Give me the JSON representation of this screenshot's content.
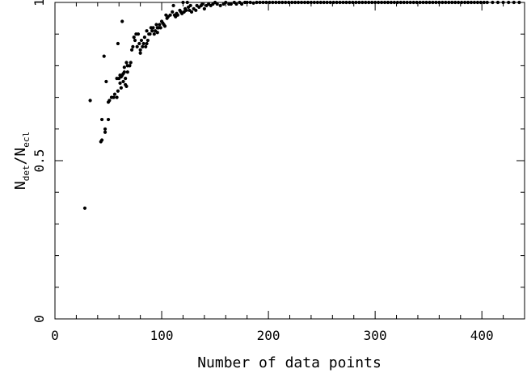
{
  "chart_data": {
    "type": "scatter",
    "xlabel": "Number of data points",
    "ylabel": {
      "n1": "N",
      "sub1": "det",
      "sep": "/",
      "n2": "N",
      "sub2": "ecl"
    },
    "xlim": [
      0,
      440
    ],
    "ylim": [
      0,
      1.0
    ],
    "x_ticks": [
      0,
      100,
      200,
      300,
      400
    ],
    "y_ticks": [
      0,
      0.5,
      1
    ],
    "x_tick_labels": [
      "0",
      "100",
      "200",
      "300",
      "400"
    ],
    "y_tick_labels": [
      "0",
      "0.5",
      "1"
    ],
    "x_minor_step": 20,
    "y_minor_step": 0.1,
    "grid": false,
    "color": "#000000",
    "points": [
      [
        28,
        0.35
      ],
      [
        33,
        0.69
      ],
      [
        43,
        0.56
      ],
      [
        44,
        0.565
      ],
      [
        44,
        0.63
      ],
      [
        46,
        0.83
      ],
      [
        47,
        0.59
      ],
      [
        47,
        0.6
      ],
      [
        48,
        0.75
      ],
      [
        50,
        0.63
      ],
      [
        50,
        0.685
      ],
      [
        51,
        0.69
      ],
      [
        53,
        0.7
      ],
      [
        55,
        0.7
      ],
      [
        56,
        0.71
      ],
      [
        58,
        0.7
      ],
      [
        58,
        0.76
      ],
      [
        59,
        0.72
      ],
      [
        59,
        0.87
      ],
      [
        60,
        0.76
      ],
      [
        61,
        0.745
      ],
      [
        61,
        0.77
      ],
      [
        62,
        0.73
      ],
      [
        62,
        0.765
      ],
      [
        63,
        0.77
      ],
      [
        63,
        0.94
      ],
      [
        64,
        0.775
      ],
      [
        64,
        0.75
      ],
      [
        65,
        0.78
      ],
      [
        65,
        0.795
      ],
      [
        66,
        0.74
      ],
      [
        66,
        0.76
      ],
      [
        67,
        0.81
      ],
      [
        67,
        0.735
      ],
      [
        68,
        0.78
      ],
      [
        68,
        0.8
      ],
      [
        70,
        0.8
      ],
      [
        71,
        0.81
      ],
      [
        72,
        0.85
      ],
      [
        73,
        0.86
      ],
      [
        74,
        0.89
      ],
      [
        75,
        0.88
      ],
      [
        76,
        0.9
      ],
      [
        77,
        0.86
      ],
      [
        78,
        0.9
      ],
      [
        79,
        0.87
      ],
      [
        80,
        0.84
      ],
      [
        80,
        0.85
      ],
      [
        81,
        0.88
      ],
      [
        82,
        0.86
      ],
      [
        83,
        0.87
      ],
      [
        84,
        0.89
      ],
      [
        85,
        0.86
      ],
      [
        86,
        0.91
      ],
      [
        86,
        0.87
      ],
      [
        87,
        0.88
      ],
      [
        88,
        0.9
      ],
      [
        89,
        0.9
      ],
      [
        90,
        0.92
      ],
      [
        91,
        0.91
      ],
      [
        92,
        0.92
      ],
      [
        93,
        0.9
      ],
      [
        94,
        0.91
      ],
      [
        95,
        0.93
      ],
      [
        96,
        0.92
      ],
      [
        96,
        0.905
      ],
      [
        97,
        0.92
      ],
      [
        98,
        0.93
      ],
      [
        99,
        0.92
      ],
      [
        100,
        0.94
      ],
      [
        101,
        0.935
      ],
      [
        102,
        0.93
      ],
      [
        103,
        0.925
      ],
      [
        104,
        0.96
      ],
      [
        105,
        0.95
      ],
      [
        106,
        0.955
      ],
      [
        108,
        0.96
      ],
      [
        110,
        0.97
      ],
      [
        111,
        0.99
      ],
      [
        112,
        0.96
      ],
      [
        113,
        0.955
      ],
      [
        114,
        0.965
      ],
      [
        115,
        0.96
      ],
      [
        117,
        0.975
      ],
      [
        118,
        0.97
      ],
      [
        119,
        0.965
      ],
      [
        120,
        1.0
      ],
      [
        121,
        0.97
      ],
      [
        122,
        0.98
      ],
      [
        123,
        0.975
      ],
      [
        124,
        1.0
      ],
      [
        125,
        0.985
      ],
      [
        126,
        0.975
      ],
      [
        127,
        0.99
      ],
      [
        128,
        0.97
      ],
      [
        130,
        0.98
      ],
      [
        132,
        0.975
      ],
      [
        133,
        0.99
      ],
      [
        135,
        0.985
      ],
      [
        137,
        0.99
      ],
      [
        138,
        0.995
      ],
      [
        140,
        0.98
      ],
      [
        142,
        0.99
      ],
      [
        144,
        0.995
      ],
      [
        146,
        0.99
      ],
      [
        148,
        0.995
      ],
      [
        150,
        1.0
      ],
      [
        152,
        0.995
      ],
      [
        155,
        0.99
      ],
      [
        158,
        0.995
      ],
      [
        160,
        1.0
      ],
      [
        163,
        0.995
      ],
      [
        165,
        0.995
      ],
      [
        168,
        1.0
      ],
      [
        170,
        0.995
      ],
      [
        173,
        1.0
      ],
      [
        175,
        0.995
      ],
      [
        178,
        1.0
      ],
      [
        180,
        1.0
      ],
      [
        183,
        1.0
      ],
      [
        186,
        0.998
      ],
      [
        189,
        1.0
      ],
      [
        192,
        1.0
      ],
      [
        195,
        1.0
      ],
      [
        198,
        1.0
      ],
      [
        201,
        1.0
      ],
      [
        204,
        1.0
      ],
      [
        207,
        1.0
      ],
      [
        210,
        1.0
      ],
      [
        213,
        1.0
      ],
      [
        216,
        1.0
      ],
      [
        219,
        1.0
      ],
      [
        222,
        1.0
      ],
      [
        225,
        1.0
      ],
      [
        228,
        1.0
      ],
      [
        231,
        1.0
      ],
      [
        234,
        1.0
      ],
      [
        237,
        1.0
      ],
      [
        240,
        1.0
      ],
      [
        243,
        1.0
      ],
      [
        246,
        1.0
      ],
      [
        249,
        1.0
      ],
      [
        252,
        1.0
      ],
      [
        255,
        1.0
      ],
      [
        258,
        1.0
      ],
      [
        261,
        1.0
      ],
      [
        264,
        1.0
      ],
      [
        267,
        1.0
      ],
      [
        270,
        1.0
      ],
      [
        273,
        1.0
      ],
      [
        276,
        1.0
      ],
      [
        279,
        1.0
      ],
      [
        282,
        1.0
      ],
      [
        285,
        1.0
      ],
      [
        288,
        1.0
      ],
      [
        291,
        1.0
      ],
      [
        294,
        1.0
      ],
      [
        297,
        1.0
      ],
      [
        300,
        1.0
      ],
      [
        303,
        1.0
      ],
      [
        306,
        1.0
      ],
      [
        309,
        1.0
      ],
      [
        312,
        1.0
      ],
      [
        315,
        1.0
      ],
      [
        318,
        1.0
      ],
      [
        321,
        1.0
      ],
      [
        324,
        1.0
      ],
      [
        327,
        1.0
      ],
      [
        330,
        1.0
      ],
      [
        333,
        1.0
      ],
      [
        336,
        1.0
      ],
      [
        339,
        1.0
      ],
      [
        342,
        1.0
      ],
      [
        345,
        1.0
      ],
      [
        348,
        1.0
      ],
      [
        351,
        1.0
      ],
      [
        354,
        1.0
      ],
      [
        357,
        1.0
      ],
      [
        360,
        1.0
      ],
      [
        363,
        1.0
      ],
      [
        366,
        1.0
      ],
      [
        369,
        1.0
      ],
      [
        372,
        1.0
      ],
      [
        375,
        1.0
      ],
      [
        378,
        1.0
      ],
      [
        381,
        1.0
      ],
      [
        384,
        1.0
      ],
      [
        387,
        1.0
      ],
      [
        390,
        1.0
      ],
      [
        393,
        1.0
      ],
      [
        396,
        1.0
      ],
      [
        399,
        1.0
      ],
      [
        402,
        1.0
      ],
      [
        405,
        1.0
      ],
      [
        410,
        1.0
      ],
      [
        415,
        1.0
      ],
      [
        420,
        1.0
      ],
      [
        425,
        1.0
      ],
      [
        430,
        1.0
      ],
      [
        435,
        1.0
      ]
    ]
  }
}
